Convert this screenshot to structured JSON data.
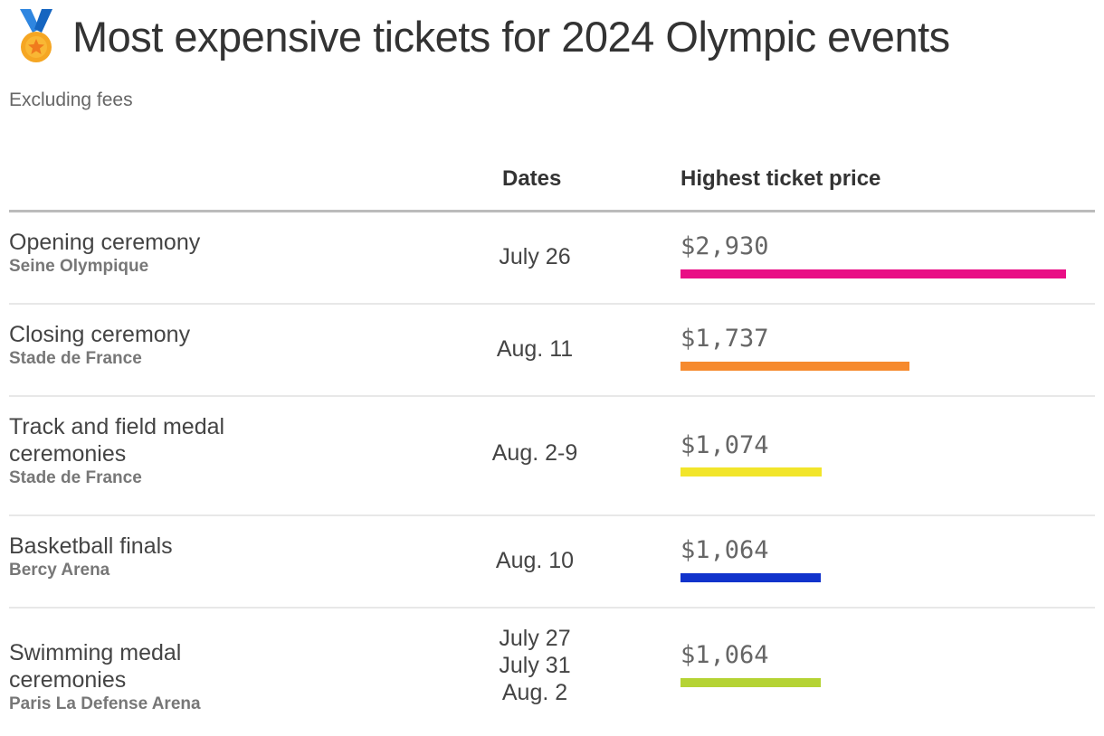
{
  "title": "Most expensive tickets for 2024 Olympic events",
  "subtitle": "Excluding fees",
  "icon": "sports-medal-icon",
  "chart_data": {
    "type": "table",
    "columns": [
      "",
      "Dates",
      "Highest ticket price"
    ],
    "max_value": 2930,
    "rows": [
      {
        "event": "Opening ceremony",
        "venue": "Seine Olympique",
        "dates": [
          "July 26"
        ],
        "price_label": "$2,930",
        "value": 2930,
        "color": "#e90e85"
      },
      {
        "event": "Closing ceremony",
        "venue": "Stade de France",
        "dates": [
          "Aug. 11"
        ],
        "price_label": "$1,737",
        "value": 1737,
        "color": "#f68a2e"
      },
      {
        "event": "Track and field medal ceremonies",
        "venue": "Stade de France",
        "dates": [
          "Aug. 2-9"
        ],
        "price_label": "$1,074",
        "value": 1074,
        "color": "#f2e52a"
      },
      {
        "event": "Basketball finals",
        "venue": "Bercy Arena",
        "dates": [
          "Aug. 10"
        ],
        "price_label": "$1,064",
        "value": 1064,
        "color": "#1133cc"
      },
      {
        "event": "Swimming medal ceremonies",
        "venue": "Paris La Defense Arena",
        "dates": [
          "July 27",
          "July 31",
          "Aug. 2"
        ],
        "price_label": "$1,064",
        "value": 1064,
        "color": "#b5d334"
      }
    ]
  }
}
